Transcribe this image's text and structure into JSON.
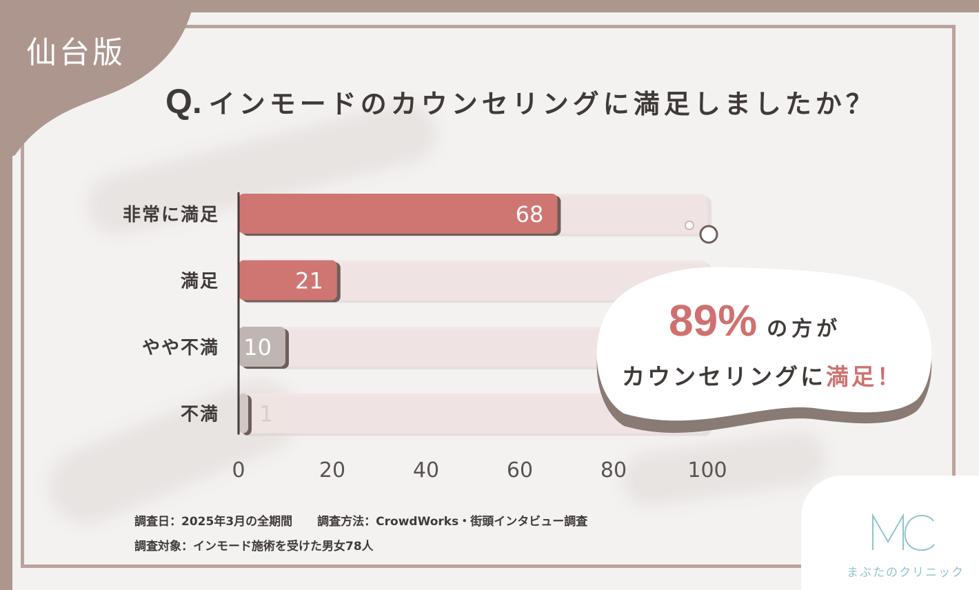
{
  "edition": "仙台版",
  "question": {
    "prefix": "Q.",
    "text": "インモードのカウンセリングに満足しましたか？"
  },
  "chart_data": {
    "type": "bar",
    "orientation": "horizontal",
    "categories": [
      "非常に満足",
      "満足",
      "やや不満",
      "不満"
    ],
    "values": [
      68,
      21,
      10,
      1
    ],
    "xlim": [
      0,
      100
    ],
    "xticks": [
      "0",
      "20",
      "40",
      "60",
      "80",
      "100"
    ],
    "colors": [
      "#cf7673",
      "#cf7673",
      "#bfb6b3",
      "#cfc8c5"
    ],
    "track_color": "#f1e5e4"
  },
  "callout": {
    "percent": "89%",
    "suffix": "の方が",
    "line2_main": "カウンセリングに",
    "line2_highlight": "満足！"
  },
  "notes": {
    "survey_date": "調査日：2025年3月の全期間",
    "survey_method": "調査方法：CrowdWorks・街頭インタビュー調査",
    "survey_target": "調査対象：インモード施術を受けた男女78人"
  },
  "logo": {
    "mark": "MC",
    "name": "まぶたのクリニック",
    "color": "#8fc4cd"
  }
}
